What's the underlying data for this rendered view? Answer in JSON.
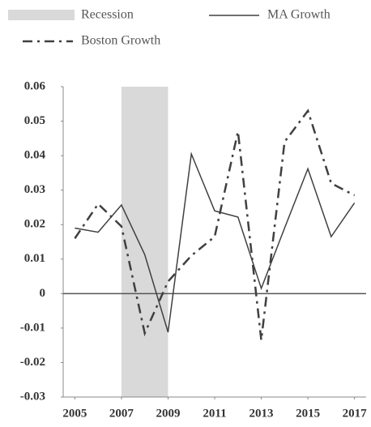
{
  "chart_data": {
    "type": "line",
    "x": [
      2005,
      2006,
      2007,
      2008,
      2009,
      2010,
      2011,
      2012,
      2013,
      2014,
      2015,
      2016,
      2017
    ],
    "series": [
      {
        "name": "MA Growth",
        "color": "#404040",
        "style": "solid",
        "values": [
          0.019,
          0.0178,
          0.0257,
          0.0113,
          -0.0112,
          0.0405,
          0.024,
          0.0222,
          0.0015,
          0.019,
          0.0362,
          0.0165,
          0.0263
        ]
      },
      {
        "name": "Boston Growth",
        "color": "#404040",
        "style": "dashdot",
        "values": [
          0.016,
          0.026,
          0.0195,
          -0.0115,
          0.0035,
          0.011,
          0.0165,
          0.047,
          -0.0135,
          0.044,
          0.053,
          0.032,
          0.0285
        ]
      }
    ],
    "recession": {
      "name": "Recession",
      "x": [
        2007,
        2009
      ],
      "color": "#d9d9d9"
    },
    "xlim": [
      2004.5,
      2017.5
    ],
    "xticks": [
      2005,
      2007,
      2009,
      2011,
      2013,
      2015,
      2017
    ],
    "ylim": [
      -0.03,
      0.06
    ],
    "yticks": [
      0.06,
      0.05,
      0.04,
      0.03,
      0.02,
      0.01,
      0,
      -0.01,
      -0.02,
      -0.03
    ],
    "grid": false
  }
}
